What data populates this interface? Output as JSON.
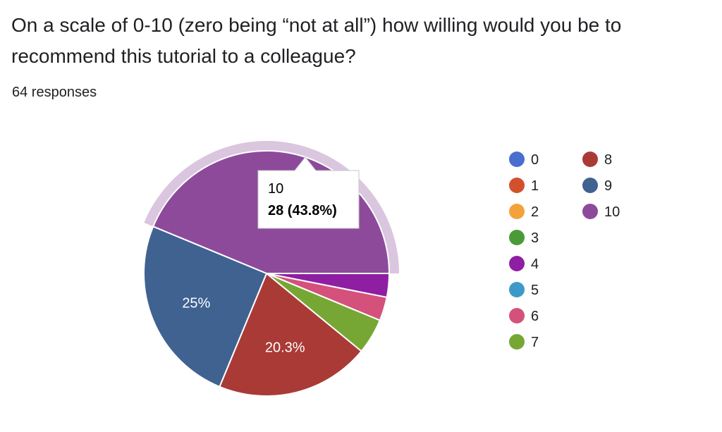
{
  "question": "On a scale of 0-10 (zero being “not at all”) how willing would you be to recommend this tutorial to a colleague?",
  "responses_text": "64 responses",
  "chart_data": {
    "type": "pie",
    "total": 64,
    "slices": [
      {
        "label": "10",
        "count": 28,
        "percent_label": "",
        "color": "#8d4a9b"
      },
      {
        "label": "4",
        "count": 2,
        "percent_label": "",
        "color": "#8e1fa3"
      },
      {
        "label": "6",
        "count": 2,
        "percent_label": "",
        "color": "#d4517b"
      },
      {
        "label": "7",
        "count": 3,
        "percent_label": "",
        "color": "#76a734"
      },
      {
        "label": "8",
        "count": 13,
        "percent_label": "20.3%",
        "color": "#aa3a36"
      },
      {
        "label": "9",
        "count": 16,
        "percent_label": "25%",
        "color": "#3f6291"
      }
    ],
    "highlighted": "10",
    "highlight_color": "#dac6df",
    "tooltip": {
      "title": "10",
      "value": "28 (43.8%)"
    },
    "legend": [
      {
        "label": "0",
        "color": "#4a6dd0"
      },
      {
        "label": "1",
        "color": "#d3502d"
      },
      {
        "label": "2",
        "color": "#f2a23a"
      },
      {
        "label": "3",
        "color": "#4a9a39"
      },
      {
        "label": "4",
        "color": "#8e1fa3"
      },
      {
        "label": "5",
        "color": "#3d9ac8"
      },
      {
        "label": "6",
        "color": "#d4517b"
      },
      {
        "label": "7",
        "color": "#76a734"
      },
      {
        "label": "8",
        "color": "#aa3a36"
      },
      {
        "label": "9",
        "color": "#3f6291"
      },
      {
        "label": "10",
        "color": "#8d4a9b"
      }
    ]
  }
}
